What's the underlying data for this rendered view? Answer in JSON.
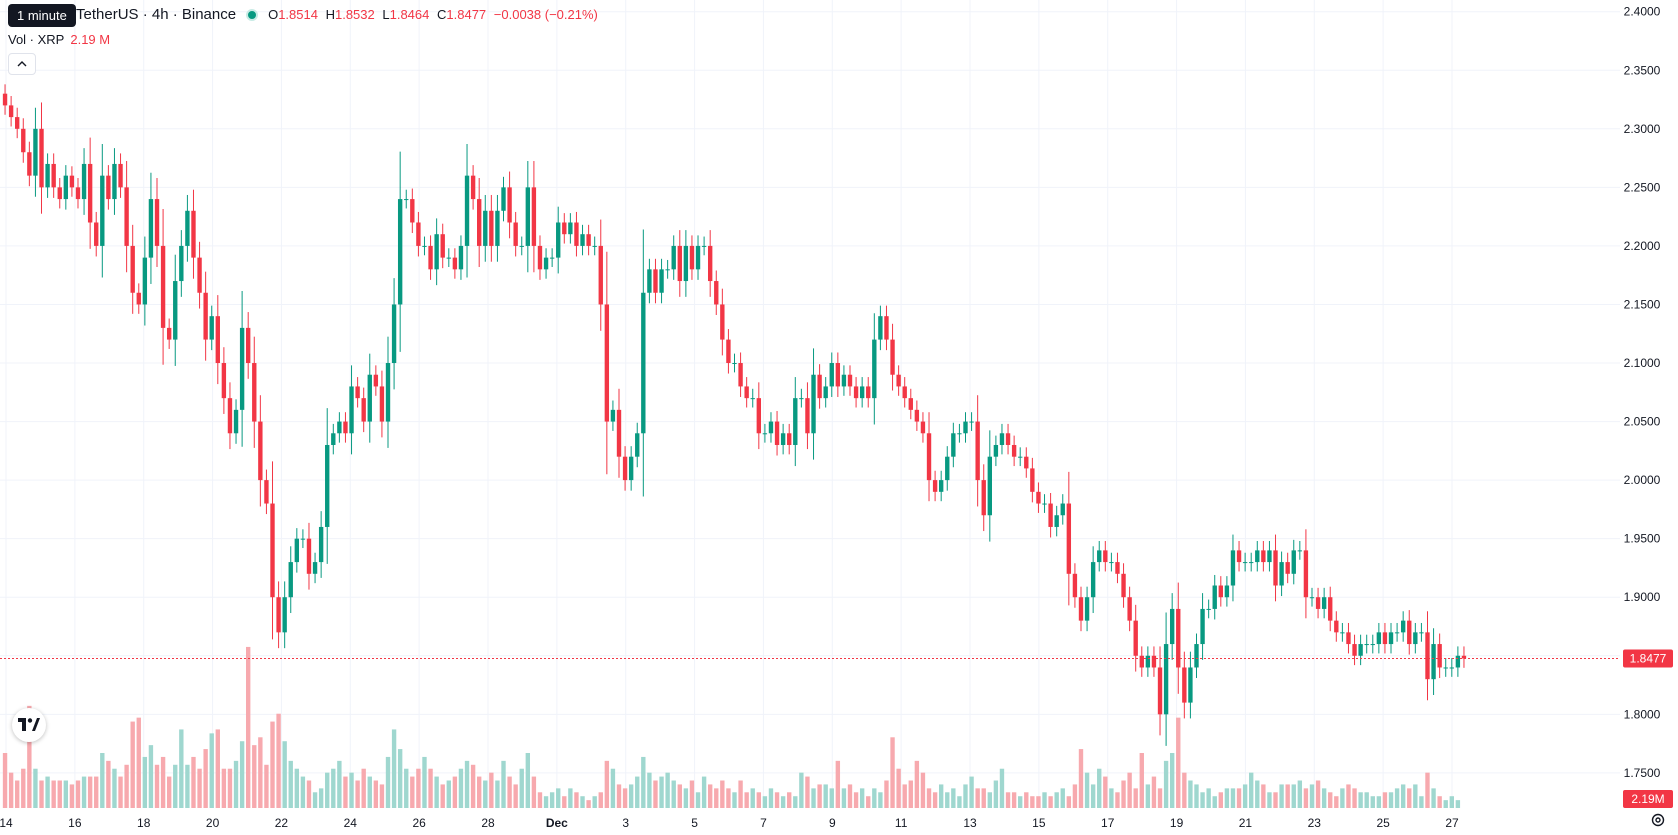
{
  "header": {
    "tooltip": "1 minute",
    "title": "TetherUS · 4h · Binance",
    "ohlc": [
      {
        "label": "O",
        "value": "1.8514"
      },
      {
        "label": "H",
        "value": "1.8532"
      },
      {
        "label": "L",
        "value": "1.8464"
      },
      {
        "label": "C",
        "value": "1.8477"
      }
    ],
    "change": "−0.0038 (−0.21%)"
  },
  "volume_legend": {
    "label": "Vol · XRP",
    "value": "2.19 M"
  },
  "colors": {
    "up": "#089981",
    "down": "#f23645",
    "up_vol": "#9fd7cf",
    "down_vol": "#f7a9ae"
  },
  "icons": {
    "collapse": "chevron-up-icon",
    "logo": "tradingview-logo-icon",
    "settings": "gear-icon"
  },
  "chart_data": {
    "type": "candlestick",
    "ylim": [
      1.72,
      2.41
    ],
    "y_ticks": [
      "2.4000",
      "2.3500",
      "2.3000",
      "2.2500",
      "2.2000",
      "2.1500",
      "2.1000",
      "2.0500",
      "2.0000",
      "1.9500",
      "1.9000",
      "1.8500",
      "1.8000",
      "1.7500"
    ],
    "x_ticks": [
      "14",
      "16",
      "18",
      "20",
      "22",
      "24",
      "26",
      "28",
      "Dec",
      "3",
      "5",
      "7",
      "9",
      "11",
      "13",
      "15",
      "17",
      "19",
      "21",
      "23",
      "25",
      "27"
    ],
    "last_price": "1.8477",
    "last_volume": "2.19M",
    "closes": [
      2.32,
      2.31,
      2.3,
      2.28,
      2.26,
      2.3,
      2.25,
      2.27,
      2.25,
      2.24,
      2.26,
      2.25,
      2.24,
      2.27,
      2.22,
      2.2,
      2.26,
      2.24,
      2.27,
      2.25,
      2.2,
      2.16,
      2.15,
      2.19,
      2.24,
      2.2,
      2.13,
      2.12,
      2.17,
      2.2,
      2.23,
      2.19,
      2.16,
      2.12,
      2.14,
      2.1,
      2.07,
      2.04,
      2.06,
      2.13,
      2.1,
      2.05,
      2.0,
      1.98,
      1.9,
      1.87,
      1.9,
      1.93,
      1.95,
      1.95,
      1.92,
      1.93,
      1.96,
      2.03,
      2.04,
      2.05,
      2.04,
      2.08,
      2.07,
      2.05,
      2.09,
      2.08,
      2.05,
      2.1,
      2.15,
      2.24,
      2.24,
      2.22,
      2.2,
      2.2,
      2.18,
      2.21,
      2.19,
      2.19,
      2.18,
      2.2,
      2.26,
      2.24,
      2.2,
      2.23,
      2.2,
      2.23,
      2.25,
      2.22,
      2.2,
      2.2,
      2.25,
      2.2,
      2.18,
      2.19,
      2.19,
      2.22,
      2.21,
      2.22,
      2.2,
      2.21,
      2.2,
      2.2,
      2.15,
      2.05,
      2.06,
      2.02,
      2.0,
      2.02,
      2.04,
      2.16,
      2.18,
      2.16,
      2.18,
      2.18,
      2.2,
      2.17,
      2.2,
      2.18,
      2.2,
      2.2,
      2.17,
      2.15,
      2.12,
      2.1,
      2.1,
      2.08,
      2.07,
      2.07,
      2.04,
      2.04,
      2.05,
      2.03,
      2.04,
      2.03,
      2.07,
      2.07,
      2.04,
      2.09,
      2.07,
      2.08,
      2.1,
      2.08,
      2.09,
      2.08,
      2.07,
      2.08,
      2.07,
      2.12,
      2.14,
      2.12,
      2.09,
      2.08,
      2.07,
      2.06,
      2.05,
      2.04,
      2.0,
      1.99,
      2.0,
      2.02,
      2.04,
      2.04,
      2.05,
      2.05,
      2.0,
      1.97,
      2.02,
      2.03,
      2.04,
      2.03,
      2.02,
      2.02,
      2.01,
      1.99,
      1.98,
      1.98,
      1.96,
      1.97,
      1.98,
      1.92,
      1.9,
      1.88,
      1.9,
      1.93,
      1.94,
      1.93,
      1.93,
      1.92,
      1.9,
      1.88,
      1.85,
      1.84,
      1.85,
      1.84,
      1.8,
      1.86,
      1.89,
      1.84,
      1.81,
      1.84,
      1.86,
      1.89,
      1.89,
      1.91,
      1.9,
      1.91,
      1.94,
      1.93,
      1.93,
      1.93,
      1.94,
      1.93,
      1.94,
      1.91,
      1.93,
      1.92,
      1.94,
      1.94,
      1.9,
      1.9,
      1.89,
      1.9,
      1.88,
      1.87,
      1.87,
      1.86,
      1.85,
      1.86,
      1.86,
      1.86,
      1.87,
      1.86,
      1.87,
      1.87,
      1.88,
      1.86,
      1.87,
      1.87,
      1.83,
      1.86,
      1.84,
      1.84,
      1.84,
      1.85,
      1.8477
    ],
    "volumes": [
      1.4,
      0.9,
      0.7,
      1.0,
      2.6,
      1.0,
      0.7,
      0.8,
      0.7,
      0.7,
      0.7,
      0.6,
      0.7,
      0.8,
      0.8,
      0.8,
      1.4,
      1.2,
      1.0,
      0.8,
      1.1,
      2.2,
      2.3,
      1.3,
      1.6,
      1.1,
      1.3,
      0.8,
      1.1,
      2.0,
      1.1,
      1.3,
      1.0,
      1.5,
      1.9,
      2.0,
      1.0,
      1.0,
      1.2,
      1.7,
      4.1,
      1.6,
      1.8,
      1.1,
      2.2,
      2.4,
      1.7,
      1.2,
      1.0,
      0.8,
      0.7,
      0.4,
      0.5,
      0.9,
      1.0,
      1.2,
      0.8,
      0.9,
      0.7,
      1.0,
      0.8,
      0.7,
      0.6,
      1.3,
      2.0,
      1.5,
      1.0,
      0.8,
      1.0,
      1.3,
      1.0,
      0.8,
      0.6,
      0.7,
      0.8,
      1.0,
      1.2,
      1.1,
      0.8,
      0.7,
      0.9,
      0.7,
      1.2,
      0.8,
      0.6,
      1.0,
      1.4,
      0.8,
      0.4,
      0.3,
      0.4,
      0.5,
      0.3,
      0.5,
      0.4,
      0.3,
      0.2,
      0.3,
      0.4,
      1.2,
      1.0,
      0.6,
      0.5,
      0.6,
      0.8,
      1.3,
      0.9,
      0.7,
      0.8,
      0.9,
      0.7,
      0.6,
      0.5,
      0.7,
      0.4,
      0.8,
      0.6,
      0.5,
      0.7,
      0.5,
      0.4,
      0.7,
      0.4,
      0.5,
      0.4,
      0.3,
      0.5,
      0.4,
      0.3,
      0.4,
      0.3,
      0.9,
      0.8,
      0.5,
      0.6,
      0.6,
      0.5,
      1.2,
      0.5,
      0.6,
      0.4,
      0.5,
      0.3,
      0.5,
      0.4,
      0.7,
      1.8,
      1.0,
      0.6,
      0.7,
      1.2,
      0.9,
      0.5,
      0.4,
      0.6,
      0.4,
      0.5,
      0.3,
      0.6,
      0.8,
      0.5,
      0.5,
      0.4,
      0.7,
      1.0,
      0.4,
      0.4,
      0.3,
      0.4,
      0.3,
      0.3,
      0.4,
      0.3,
      0.4,
      0.5,
      0.3,
      0.6,
      1.5,
      0.9,
      0.6,
      1.0,
      0.8,
      0.5,
      0.4,
      0.7,
      0.9,
      0.5,
      1.4,
      0.6,
      0.8,
      0.5,
      1.2,
      1.4,
      2.3,
      0.9,
      0.7,
      0.6,
      0.4,
      0.5,
      0.3,
      0.4,
      0.5,
      0.5,
      0.5,
      0.6,
      0.9,
      0.7,
      0.6,
      0.4,
      0.4,
      0.6,
      0.6,
      0.6,
      0.7,
      0.5,
      0.6,
      0.7,
      0.5,
      0.4,
      0.3,
      0.5,
      0.6,
      0.5,
      0.4,
      0.4,
      0.3,
      0.3,
      0.4,
      0.4,
      0.5,
      0.6,
      0.5,
      0.6,
      0.3,
      0.9,
      0.5,
      0.3,
      0.2,
      0.3,
      0.2
    ]
  }
}
